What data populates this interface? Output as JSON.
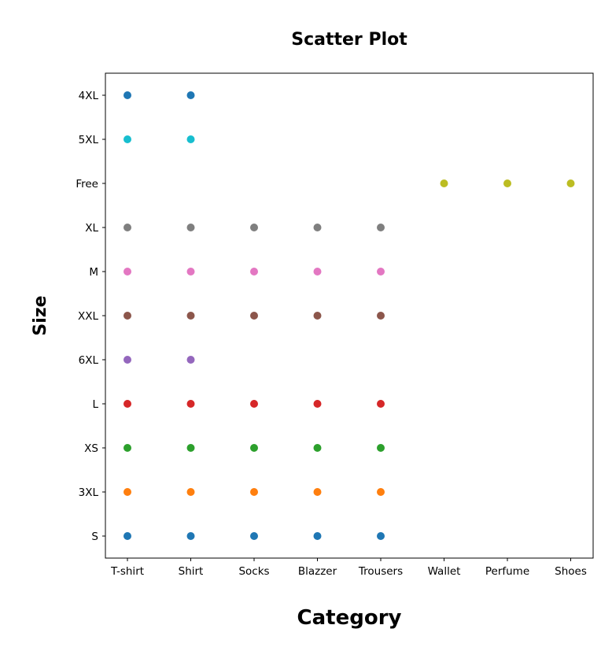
{
  "chart_data": {
    "type": "scatter",
    "title": "Scatter Plot",
    "xlabel": "Category",
    "ylabel": "Size",
    "x_categories": [
      "T-shirt",
      "Shirt",
      "Socks",
      "Blazzer",
      "Trousers",
      "Wallet",
      "Perfume",
      "Shoes"
    ],
    "y_categories": [
      "S",
      "3XL",
      "XS",
      "L",
      "6XL",
      "XXL",
      "M",
      "XL",
      "Free",
      "5XL",
      "4XL"
    ],
    "grid": false,
    "series": [
      {
        "size": "S",
        "color": "#1f77b4",
        "x": [
          "T-shirt",
          "Shirt",
          "Socks",
          "Blazzer",
          "Trousers"
        ]
      },
      {
        "size": "3XL",
        "color": "#ff7f0e",
        "x": [
          "T-shirt",
          "Shirt",
          "Socks",
          "Blazzer",
          "Trousers"
        ]
      },
      {
        "size": "XS",
        "color": "#2ca02c",
        "x": [
          "T-shirt",
          "Shirt",
          "Socks",
          "Blazzer",
          "Trousers"
        ]
      },
      {
        "size": "L",
        "color": "#d62728",
        "x": [
          "T-shirt",
          "Shirt",
          "Socks",
          "Blazzer",
          "Trousers"
        ]
      },
      {
        "size": "6XL",
        "color": "#9467bd",
        "x": [
          "T-shirt",
          "Shirt"
        ]
      },
      {
        "size": "XXL",
        "color": "#8c564b",
        "x": [
          "T-shirt",
          "Shirt",
          "Socks",
          "Blazzer",
          "Trousers"
        ]
      },
      {
        "size": "M",
        "color": "#e377c2",
        "x": [
          "T-shirt",
          "Shirt",
          "Socks",
          "Blazzer",
          "Trousers"
        ]
      },
      {
        "size": "XL",
        "color": "#7f7f7f",
        "x": [
          "T-shirt",
          "Shirt",
          "Socks",
          "Blazzer",
          "Trousers"
        ]
      },
      {
        "size": "Free",
        "color": "#bcbd22",
        "x": [
          "Wallet",
          "Perfume",
          "Shoes"
        ]
      },
      {
        "size": "5XL",
        "color": "#17becf",
        "x": [
          "T-shirt",
          "Shirt"
        ]
      },
      {
        "size": "4XL",
        "color": "#1f77b4",
        "x": [
          "T-shirt",
          "Shirt"
        ]
      }
    ]
  }
}
